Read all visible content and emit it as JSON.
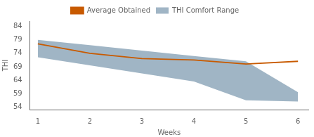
{
  "chart_data": {
    "type": "line",
    "x": [
      1,
      2,
      3,
      4,
      5,
      6
    ],
    "series": [
      {
        "name": "THI Comfort Range",
        "type": "area",
        "color": "#8fa8bb",
        "lower": [
          72.5,
          69.5,
          66.5,
          63.5,
          56.5,
          56.0
        ],
        "upper": [
          79.0,
          77.0,
          75.0,
          73.0,
          71.0,
          59.5
        ]
      },
      {
        "name": "Average Obtained",
        "type": "line",
        "color": "#c85a00",
        "values": [
          77.5,
          74.0,
          72.0,
          71.5,
          70.0,
          71.0
        ]
      }
    ],
    "xlabel": "Weeks",
    "ylabel": "THI",
    "xlim": [
      0.85,
      6.2
    ],
    "xticks": [
      1,
      2,
      3,
      4,
      5,
      6
    ],
    "ylim": [
      53,
      86
    ],
    "yticks": [
      54,
      59,
      64,
      69,
      74,
      79,
      84
    ],
    "grid": false,
    "legend": "top"
  }
}
